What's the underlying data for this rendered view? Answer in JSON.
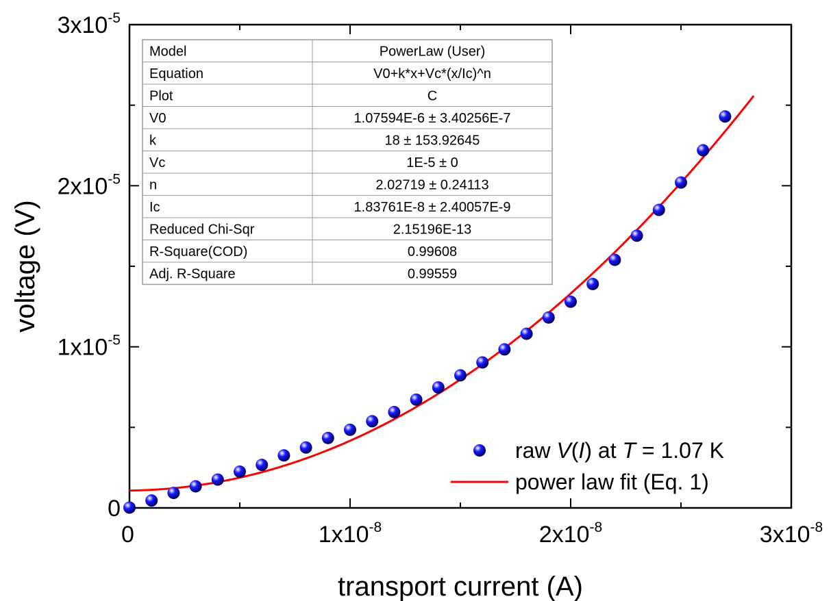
{
  "chart_data": {
    "type": "scatter",
    "xlabel": "transport current (A)",
    "ylabel": "voltage (V)",
    "xlim": [
      0,
      3e-08
    ],
    "ylim": [
      0,
      3e-05
    ],
    "x_ticks": [
      {
        "value": 0,
        "base": "0",
        "exp": ""
      },
      {
        "value": 1e-08,
        "base": "1x10",
        "exp": "-8"
      },
      {
        "value": 2e-08,
        "base": "2x10",
        "exp": "-8"
      },
      {
        "value": 3e-08,
        "base": "3x10",
        "exp": "-8"
      }
    ],
    "y_ticks": [
      {
        "value": 0,
        "base": "0",
        "exp": ""
      },
      {
        "value": 1e-05,
        "base": "1x10",
        "exp": "-5"
      },
      {
        "value": 2e-05,
        "base": "2x10",
        "exp": "-5"
      },
      {
        "value": 3e-05,
        "base": "3x10",
        "exp": "-5"
      }
    ],
    "series": [
      {
        "kind": "scatter",
        "color": "#1a1aff",
        "legend_parts": [
          {
            "text": "raw ",
            "italic": false
          },
          {
            "text": "V",
            "italic": true
          },
          {
            "text": "(",
            "italic": false
          },
          {
            "text": "I",
            "italic": true
          },
          {
            "text": ") at ",
            "italic": false
          },
          {
            "text": "T",
            "italic": true
          },
          {
            "text": " = 1.07 K",
            "italic": false
          }
        ],
        "x": [
          0,
          1e-09,
          2e-09,
          3e-09,
          4e-09,
          5e-09,
          6e-09,
          7e-09,
          8e-09,
          9e-09,
          1e-08,
          1.1e-08,
          1.2e-08,
          1.3e-08,
          1.4e-08,
          1.5e-08,
          1.6e-08,
          1.7e-08,
          1.8e-08,
          1.9e-08,
          2e-08,
          2.1e-08,
          2.2e-08,
          2.3e-08,
          2.4e-08,
          2.5e-08,
          2.6e-08,
          2.7e-08
        ],
        "y": [
          2e-08,
          4.6e-07,
          9.3e-07,
          1.34e-06,
          1.76e-06,
          2.25e-06,
          2.67e-06,
          3.26e-06,
          3.75e-06,
          4.34e-06,
          4.85e-06,
          5.38e-06,
          5.95e-06,
          6.72e-06,
          7.48e-06,
          8.23e-06,
          9.03e-06,
          9.84e-06,
          1.081e-05,
          1.182e-05,
          1.28e-05,
          1.39e-05,
          1.54e-05,
          1.69e-05,
          1.85e-05,
          2.02e-05,
          2.22e-05,
          2.43e-05
        ]
      },
      {
        "kind": "line",
        "color": "#ff0000",
        "legend_parts": [
          {
            "text": "power law fit (Eq. 1)",
            "italic": false
          }
        ],
        "fit": {
          "V0": 1.07594e-06,
          "k": 18,
          "Vc": 1e-05,
          "n": 2.02719,
          "Ic": 1.83761e-08,
          "x_range": [
            0,
            2.83e-08
          ]
        }
      }
    ],
    "legend_position": "bottom-right",
    "grid": false
  },
  "fit_table": {
    "rows": [
      {
        "label": "Model",
        "value": "PowerLaw (User)"
      },
      {
        "label": "Equation",
        "value": "V0+k*x+Vc*(x/Ic)^n"
      },
      {
        "label": "Plot",
        "value": "C"
      },
      {
        "label": "V0",
        "value": "1.07594E-6 ± 3.40256E-7"
      },
      {
        "label": "k",
        "value": "18 ± 153.92645"
      },
      {
        "label": "Vc",
        "value": "1E-5 ± 0"
      },
      {
        "label": "n",
        "value": "2.02719 ± 0.24113"
      },
      {
        "label": "Ic",
        "value": "1.83761E-8 ± 2.40057E-9"
      },
      {
        "label": "Reduced Chi-Sqr",
        "value": "2.15196E-13"
      },
      {
        "label": "R-Square(COD)",
        "value": "0.99608"
      },
      {
        "label": "Adj. R-Square",
        "value": "0.99559"
      }
    ]
  }
}
